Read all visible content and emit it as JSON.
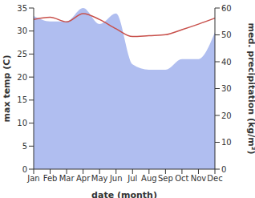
{
  "chart_data": {
    "type": "line",
    "x_label": "date (month)",
    "categories": [
      "Jan",
      "Feb",
      "Mar",
      "Apr",
      "May",
      "Jun",
      "Jul",
      "Aug",
      "Sep",
      "Oct",
      "Nov",
      "Dec"
    ],
    "ylabel": "max temp (C)",
    "ylim": [
      0,
      35
    ],
    "yticks": [
      0,
      5,
      10,
      15,
      20,
      25,
      30,
      35
    ],
    "y2label": "med. precipitation (kg/m²)",
    "y2lim": [
      0,
      60
    ],
    "y2ticks": [
      0,
      10,
      20,
      30,
      40,
      50,
      60
    ],
    "grid": false,
    "series": [
      {
        "name": "med. precipitation",
        "type": "area",
        "axis": "y2",
        "color": "#b0bef0",
        "values": [
          57,
          55,
          55,
          60,
          54,
          58,
          39,
          37,
          37,
          41,
          41,
          51
        ]
      },
      {
        "name": "max temp",
        "type": "line",
        "axis": "y",
        "color": "#c8504b",
        "values": [
          32.5,
          33,
          32,
          33.8,
          32.5,
          30.5,
          28.8,
          29,
          29.2,
          30.3,
          31.5,
          32.8
        ]
      }
    ]
  }
}
